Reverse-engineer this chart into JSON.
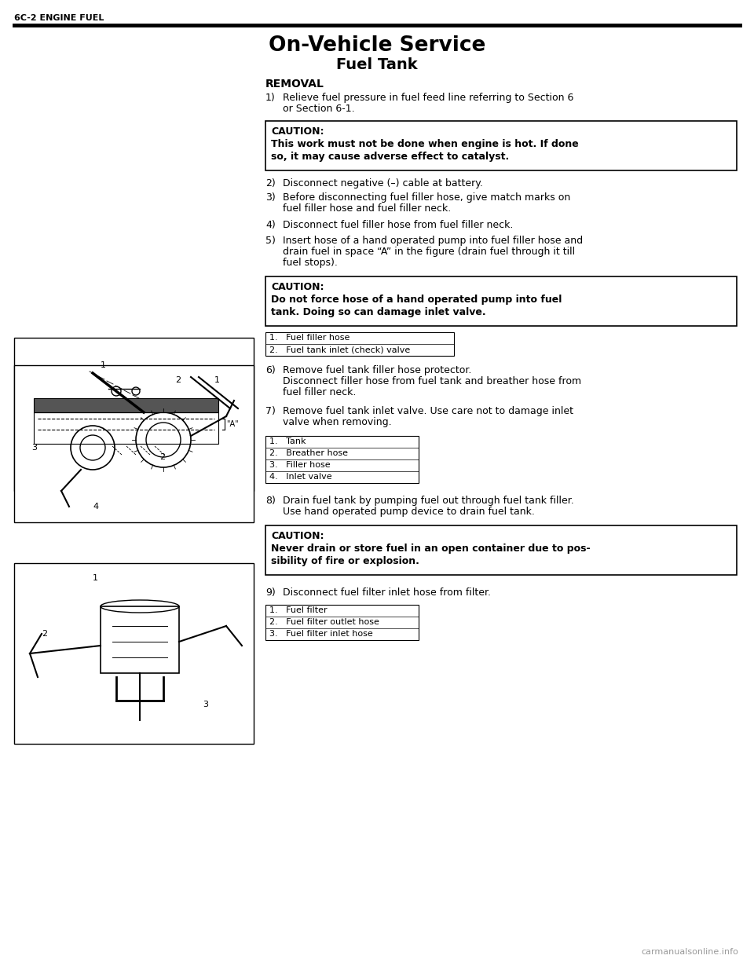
{
  "header_text": "6C-2 ENGINE FUEL",
  "title": "On-Vehicle Service",
  "subtitle": "Fuel Tank",
  "section": "REMOVAL",
  "bg_color": "#ffffff",
  "text_color": "#000000",
  "steps": [
    {
      "num": "1)",
      "lines": [
        "Relieve fuel pressure in fuel feed line referring to Section 6",
        "or Section 6-1."
      ]
    },
    {
      "num": "2)",
      "lines": [
        "Disconnect negative (–) cable at battery."
      ]
    },
    {
      "num": "3)",
      "lines": [
        "Before disconnecting fuel filler hose, give match marks on",
        "fuel filler hose and fuel filler neck."
      ]
    },
    {
      "num": "4)",
      "lines": [
        "Disconnect fuel filler hose from fuel filler neck."
      ]
    },
    {
      "num": "5)",
      "lines": [
        "Insert hose of a hand operated pump into fuel filler hose and",
        "drain fuel in space “A” in the figure (drain fuel through it till",
        "fuel stops)."
      ]
    },
    {
      "num": "6)",
      "lines": [
        "Remove fuel tank filler hose protector.",
        "Disconnect filler hose from fuel tank and breather hose from",
        "fuel filler neck."
      ]
    },
    {
      "num": "7)",
      "lines": [
        "Remove fuel tank inlet valve. Use care not to damage inlet",
        "valve when removing."
      ]
    },
    {
      "num": "8)",
      "lines": [
        "Drain fuel tank by pumping fuel out through fuel tank filler.",
        "Use hand operated pump device to drain fuel tank."
      ]
    },
    {
      "num": "9)",
      "lines": [
        "Disconnect fuel filter inlet hose from filter."
      ]
    }
  ],
  "caution_boxes": [
    {
      "label": "CAUTION:",
      "text": "This work must not be done when engine is hot. If done\nso, it may cause adverse effect to catalyst."
    },
    {
      "label": "CAUTION:",
      "text": "Do not force hose of a hand operated pump into fuel\ntank. Doing so can damage inlet valve."
    },
    {
      "label": "CAUTION:",
      "text": "Never drain or store fuel in an open container due to pos-\nsibility of fire or explosion."
    }
  ],
  "legend_table1": [
    "1.   Fuel filler hose",
    "2.   Fuel tank inlet (check) valve"
  ],
  "legend_table2": [
    "1.   Tank",
    "2.   Breather hose",
    "3.   Filler hose",
    "4.   Inlet valve"
  ],
  "legend_table3": [
    "1.   Fuel filter",
    "2.   Fuel filter outlet hose",
    "3.   Fuel filter inlet hose"
  ],
  "watermark": "carmanualsonline.info"
}
